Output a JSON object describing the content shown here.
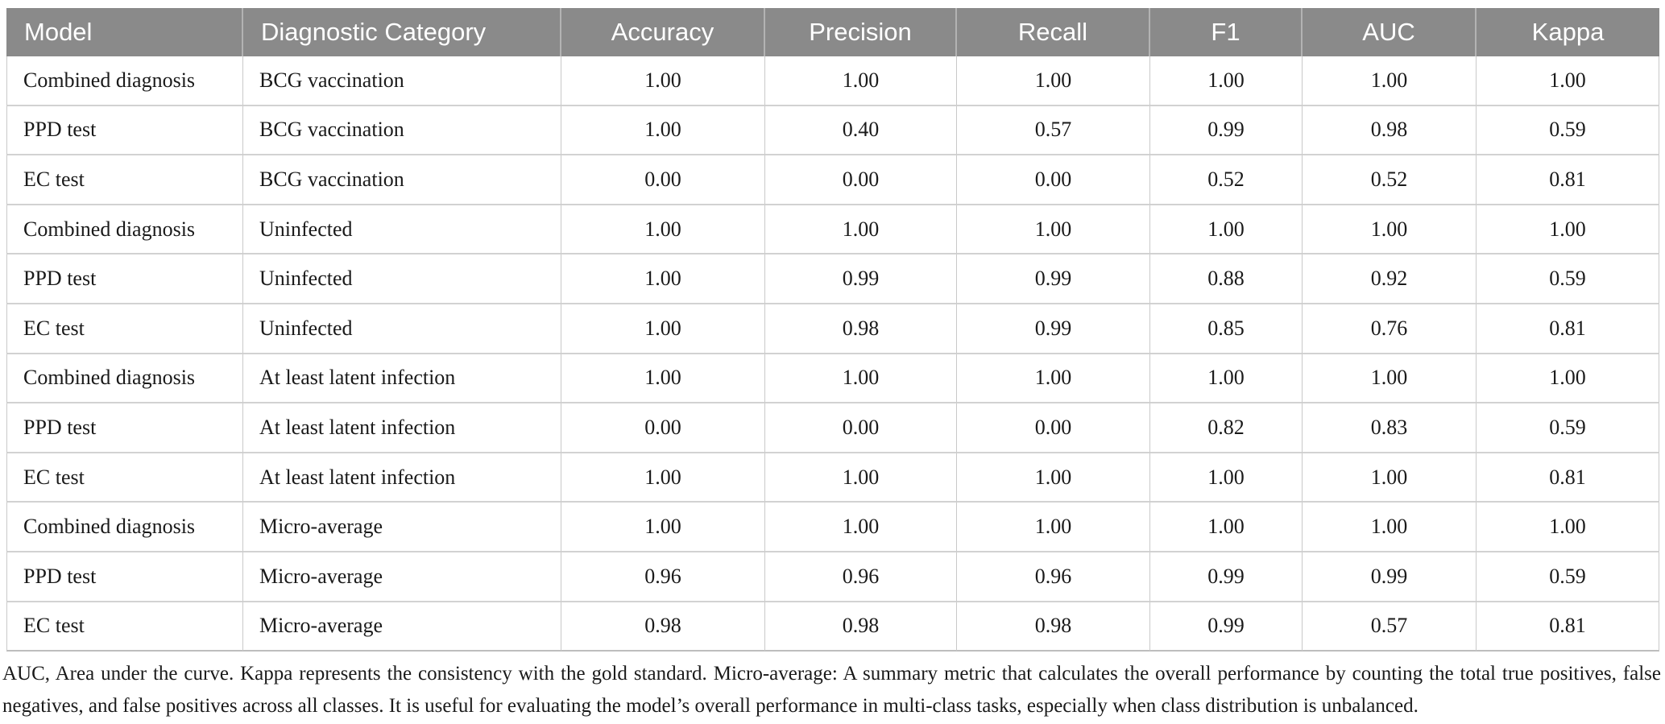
{
  "table": {
    "columns": [
      {
        "key": "model",
        "label": "Model",
        "align": "left"
      },
      {
        "key": "diagnostic-category",
        "label": "Diagnostic Category",
        "align": "left"
      },
      {
        "key": "accuracy",
        "label": "Accuracy",
        "align": "center"
      },
      {
        "key": "precision",
        "label": "Precision",
        "align": "center"
      },
      {
        "key": "recall",
        "label": "Recall",
        "align": "center"
      },
      {
        "key": "f1",
        "label": "F1",
        "align": "center"
      },
      {
        "key": "auc",
        "label": "AUC",
        "align": "center"
      },
      {
        "key": "kappa",
        "label": "Kappa",
        "align": "center"
      }
    ],
    "rows": [
      [
        "Combined diagnosis",
        "BCG vaccination",
        "1.00",
        "1.00",
        "1.00",
        "1.00",
        "1.00",
        "1.00"
      ],
      [
        "PPD test",
        "BCG vaccination",
        "1.00",
        "0.40",
        "0.57",
        "0.99",
        "0.98",
        "0.59"
      ],
      [
        "EC test",
        "BCG vaccination",
        "0.00",
        "0.00",
        "0.00",
        "0.52",
        "0.52",
        "0.81"
      ],
      [
        "Combined diagnosis",
        "Uninfected",
        "1.00",
        "1.00",
        "1.00",
        "1.00",
        "1.00",
        "1.00"
      ],
      [
        "PPD test",
        "Uninfected",
        "1.00",
        "0.99",
        "0.99",
        "0.88",
        "0.92",
        "0.59"
      ],
      [
        "EC test",
        "Uninfected",
        "1.00",
        "0.98",
        "0.99",
        "0.85",
        "0.76",
        "0.81"
      ],
      [
        "Combined diagnosis",
        "At least latent infection",
        "1.00",
        "1.00",
        "1.00",
        "1.00",
        "1.00",
        "1.00"
      ],
      [
        "PPD test",
        "At least latent infection",
        "0.00",
        "0.00",
        "0.00",
        "0.82",
        "0.83",
        "0.59"
      ],
      [
        "EC test",
        "At least latent infection",
        "1.00",
        "1.00",
        "1.00",
        "1.00",
        "1.00",
        "0.81"
      ],
      [
        "Combined diagnosis",
        "Micro-average",
        "1.00",
        "1.00",
        "1.00",
        "1.00",
        "1.00",
        "1.00"
      ],
      [
        "PPD test",
        "Micro-average",
        "0.96",
        "0.96",
        "0.96",
        "0.99",
        "0.99",
        "0.59"
      ],
      [
        "EC test",
        "Micro-average",
        "0.98",
        "0.98",
        "0.98",
        "0.99",
        "0.57",
        "0.81"
      ]
    ]
  },
  "footnote": "AUC, Area under the curve. Kappa represents the consistency with the gold standard. Micro-average: A summary metric that calculates the overall performance by counting the total true positives, false negatives, and false positives across all classes. It is useful for evaluating the model’s overall performance in multi-class tasks, especially when class distribution is unbalanced.",
  "colors": {
    "header_bg": "#8a8a8a",
    "header_text": "#ffffff",
    "body_text": "#1a1a1a",
    "grid_border": "#c9c9c9"
  }
}
